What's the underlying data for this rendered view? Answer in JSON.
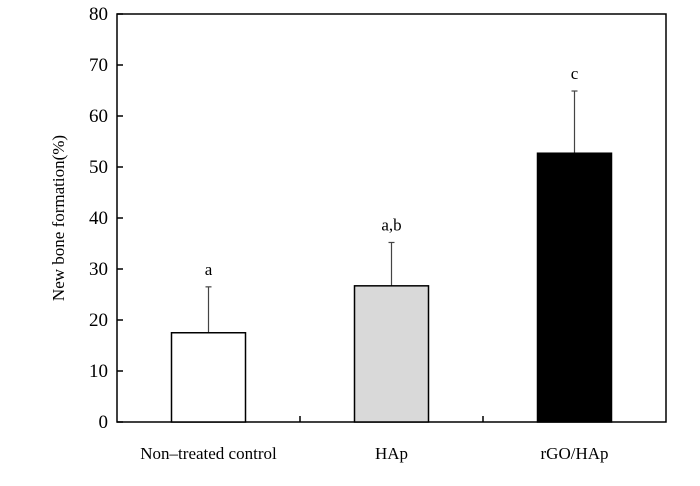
{
  "chart_data": {
    "type": "bar",
    "title": "",
    "xlabel": "",
    "ylabel": "New bone formation(%)",
    "ylim": [
      0,
      80
    ],
    "yticks": [
      0,
      10,
      20,
      30,
      40,
      50,
      60,
      70,
      80
    ],
    "grid": false,
    "legend": "none",
    "categories": [
      "Non–treated control",
      "HAp",
      "rGO/HAp"
    ],
    "values": [
      17.5,
      26.7,
      52.7
    ],
    "errors": [
      9.0,
      8.5,
      12.2
    ],
    "significance_labels": [
      "a",
      "a,b",
      "c"
    ],
    "colors": [
      "#ffffff",
      "#d9d9d9",
      "#000000"
    ]
  }
}
